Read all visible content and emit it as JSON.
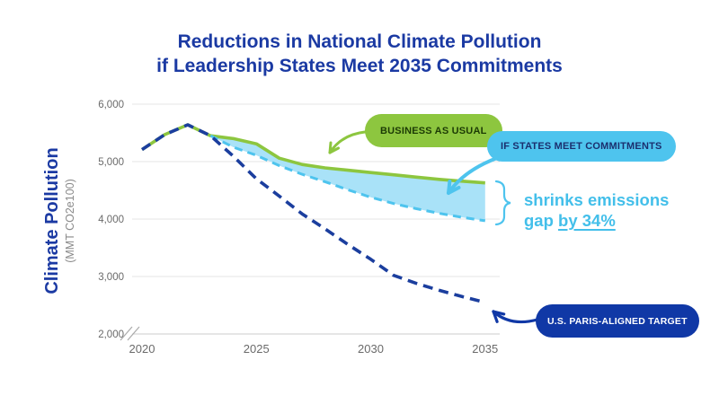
{
  "header": {
    "title_line1": "Reductions in National Climate Pollution",
    "title_line2": "if Leadership States Meet 2035 Commitments"
  },
  "y_axis": {
    "title": "Climate Pollution",
    "subtitle": "(MMT CO2e100)"
  },
  "labels": {
    "bau": "BUSINESS AS USUAL",
    "commitments": "IF STATES MEET COMMITMENTS",
    "paris": "U.S. PARIS-ALIGNED TARGET"
  },
  "annotation": {
    "line1": "shrinks emissions",
    "line2_prefix": "gap ",
    "line2_underlined": "by 34%"
  },
  "colors": {
    "navy": "#1B3E9E",
    "green": "#8DC63F",
    "sky": "#4EC4EE",
    "sky_fill": "#A9E2F8",
    "badge_navy": "#1038A6",
    "title_navy": "#1B3AA3",
    "annotation_sky": "#43BFEA",
    "axis_text": "#6A6A6A",
    "grid": "#E4E4E4"
  },
  "chart_data": {
    "type": "line",
    "title": "Reductions in National Climate Pollution if Leadership States Meet 2035 Commitments",
    "xlabel": "",
    "ylabel": "Climate Pollution (MMT CO2e100)",
    "xlim": [
      2020,
      2035
    ],
    "ylim": [
      2000,
      6000
    ],
    "x_ticks": [
      2020,
      2025,
      2030,
      2035
    ],
    "y_ticks": [
      2000,
      3000,
      4000,
      5000,
      6000
    ],
    "y_axis_break_below": 2000,
    "grid": "horizontal",
    "legend_position": "inline-callouts",
    "historical": {
      "x": [
        2020,
        2021,
        2022,
        2023
      ],
      "values": [
        5210,
        5470,
        5640,
        5450
      ]
    },
    "projection_x": [
      2023,
      2024,
      2025,
      2026,
      2027,
      2028,
      2029,
      2030,
      2031,
      2032,
      2033,
      2034,
      2035
    ],
    "series": [
      {
        "name": "Business as usual",
        "style": "solid",
        "color": "#8DC63F",
        "values": [
          5450,
          5400,
          5310,
          5060,
          4950,
          4890,
          4850,
          4810,
          4770,
          4730,
          4690,
          4660,
          4630
        ]
      },
      {
        "name": "If states meet commitments",
        "style": "dashed",
        "color": "#4EC4EE",
        "values": [
          5450,
          5250,
          5110,
          4930,
          4780,
          4650,
          4510,
          4380,
          4270,
          4180,
          4100,
          4030,
          3970
        ]
      },
      {
        "name": "U.S. Paris-aligned target",
        "style": "dashed",
        "color": "#1B3E9E",
        "values": [
          5450,
          5090,
          4700,
          4400,
          4090,
          3830,
          3560,
          3300,
          3020,
          2880,
          2760,
          2650,
          2550
        ]
      }
    ],
    "gap_fill_between": [
      "Business as usual",
      "If states meet commitments"
    ],
    "annotation": "shrinks emissions gap by 34%"
  }
}
